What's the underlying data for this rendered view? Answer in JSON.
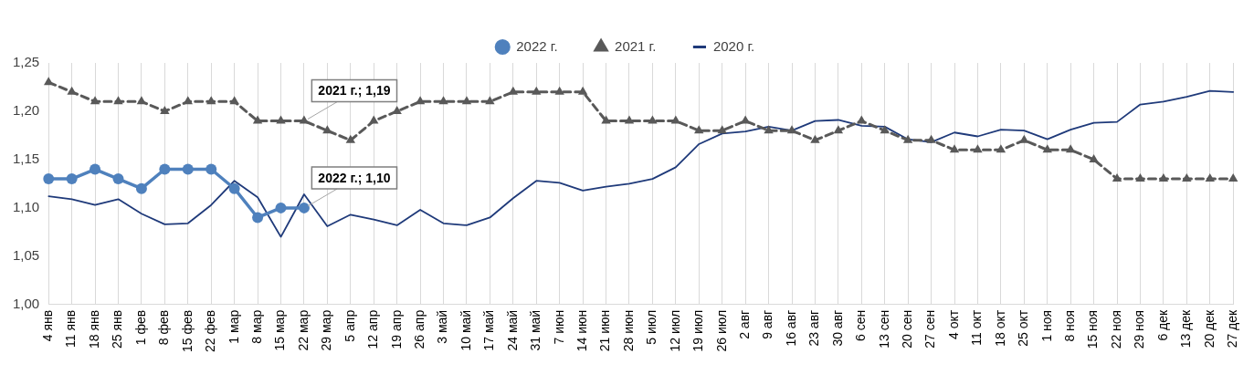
{
  "chart_data": {
    "type": "line",
    "categories": [
      "4 янв",
      "11 янв",
      "18 янв",
      "25 янв",
      "1 фев",
      "8 фев",
      "15 фев",
      "22 фев",
      "1 мар",
      "8 мар",
      "15 мар",
      "22 мар",
      "29 мар",
      "5 апр",
      "12 апр",
      "19 апр",
      "26 апр",
      "3 май",
      "10 май",
      "17 май",
      "24 май",
      "31 май",
      "7 июн",
      "14 июн",
      "21 июн",
      "28 июн",
      "5 июл",
      "12 июл",
      "19 июл",
      "26 июл",
      "2 авг",
      "9 авг",
      "16 авг",
      "23 авг",
      "30 авг",
      "6 сен",
      "13 сен",
      "20 сен",
      "27 сен",
      "4 окт",
      "11 окт",
      "18 окт",
      "25 окт",
      "1 ноя",
      "8 ноя",
      "15 ноя",
      "22 ноя",
      "29 ноя",
      "6 дек",
      "13 дек",
      "20 дек",
      "27 дек"
    ],
    "series": [
      {
        "name": "2022 г.",
        "color": "#4f81bd",
        "marker": "circle",
        "line_style": "solid",
        "values": [
          1.13,
          1.13,
          1.14,
          1.13,
          1.12,
          1.14,
          1.14,
          1.14,
          1.12,
          1.09,
          1.1,
          1.1,
          null,
          null,
          null,
          null,
          null,
          null,
          null,
          null,
          null,
          null,
          null,
          null,
          null,
          null,
          null,
          null,
          null,
          null,
          null,
          null,
          null,
          null,
          null,
          null,
          null,
          null,
          null,
          null,
          null,
          null,
          null,
          null,
          null,
          null,
          null,
          null,
          null,
          null,
          null,
          null
        ]
      },
      {
        "name": "2021 г.",
        "color": "#595959",
        "marker": "triangle",
        "line_style": "dashed",
        "values": [
          1.23,
          1.22,
          1.21,
          1.21,
          1.21,
          1.2,
          1.21,
          1.21,
          1.21,
          1.19,
          1.19,
          1.19,
          1.18,
          1.17,
          1.19,
          1.2,
          1.21,
          1.21,
          1.21,
          1.21,
          1.22,
          1.22,
          1.22,
          1.22,
          1.19,
          1.19,
          1.19,
          1.19,
          1.18,
          1.18,
          1.19,
          1.18,
          1.18,
          1.17,
          1.18,
          1.19,
          1.18,
          1.17,
          1.17,
          1.16,
          1.16,
          1.16,
          1.17,
          1.16,
          1.16,
          1.15,
          1.13,
          1.13,
          1.13,
          1.13,
          1.13,
          1.13
        ]
      },
      {
        "name": "2020 г.",
        "color": "#1f3a7a",
        "marker": "none",
        "line_style": "solid",
        "values": [
          1.112,
          1.109,
          1.103,
          1.109,
          1.094,
          1.083,
          1.084,
          1.103,
          1.128,
          1.111,
          1.07,
          1.114,
          1.081,
          1.093,
          1.088,
          1.082,
          1.098,
          1.084,
          1.082,
          1.09,
          1.11,
          1.128,
          1.126,
          1.118,
          1.122,
          1.125,
          1.13,
          1.142,
          1.166,
          1.177,
          1.179,
          1.184,
          1.18,
          1.19,
          1.191,
          1.185,
          1.184,
          1.171,
          1.168,
          1.178,
          1.174,
          1.181,
          1.18,
          1.171,
          1.181,
          1.188,
          1.189,
          1.207,
          1.21,
          1.215,
          1.221,
          1.22
        ]
      }
    ],
    "ylim": [
      1.0,
      1.25
    ],
    "yticks": [
      {
        "value": 1.0,
        "label": "1,00"
      },
      {
        "value": 1.05,
        "label": "1,05"
      },
      {
        "value": 1.1,
        "label": "1,10"
      },
      {
        "value": 1.15,
        "label": "1,15"
      },
      {
        "value": 1.2,
        "label": "1,20"
      },
      {
        "value": 1.25,
        "label": "1,25"
      }
    ],
    "grid": "x",
    "legend": "top",
    "annotations": [
      {
        "text": "2021 г.; 1,19",
        "x": "22 мар",
        "y": 1.19
      },
      {
        "text": "2022 г.; 1,10",
        "x": "22 мар",
        "y": 1.1
      }
    ]
  }
}
